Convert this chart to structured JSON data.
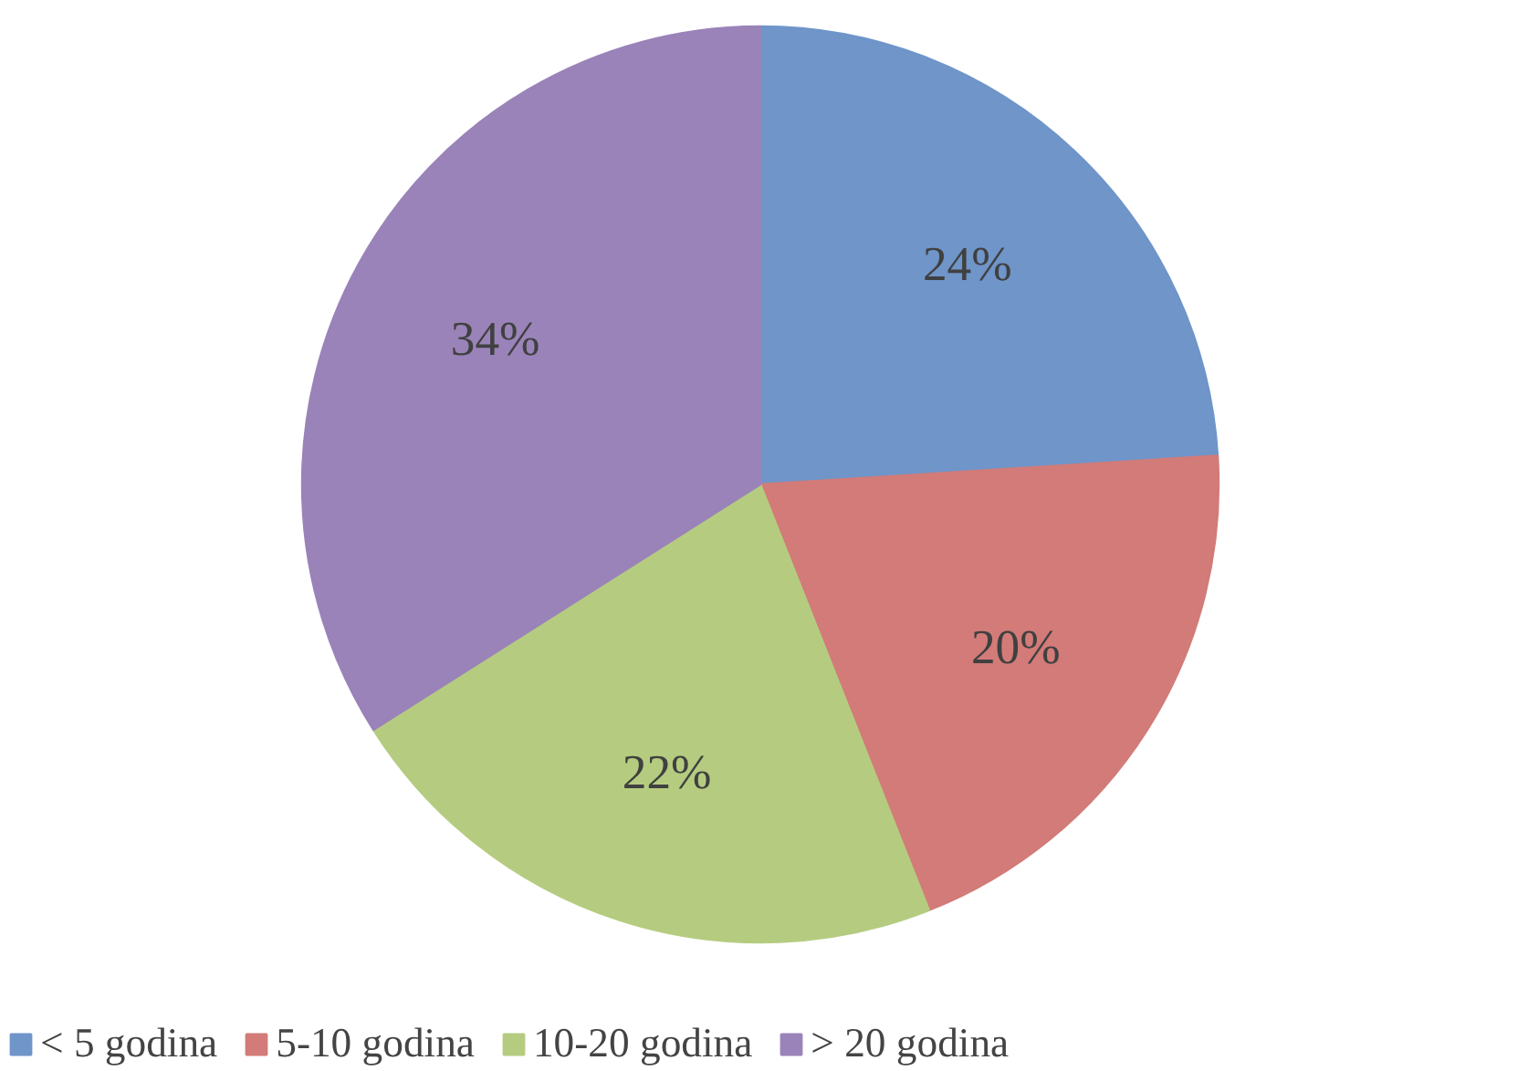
{
  "chart_data": {
    "type": "pie",
    "categories": [
      "< 5 godina",
      "5-10 godina",
      "10-20 godina",
      "> 20 godina"
    ],
    "values": [
      24,
      20,
      22,
      34
    ],
    "colors": [
      "#6f95c9",
      "#d27b78",
      "#b5cc80",
      "#9a83b9"
    ],
    "value_labels": [
      "24%",
      "20%",
      "22%",
      "34%"
    ],
    "legend": "bottom"
  }
}
